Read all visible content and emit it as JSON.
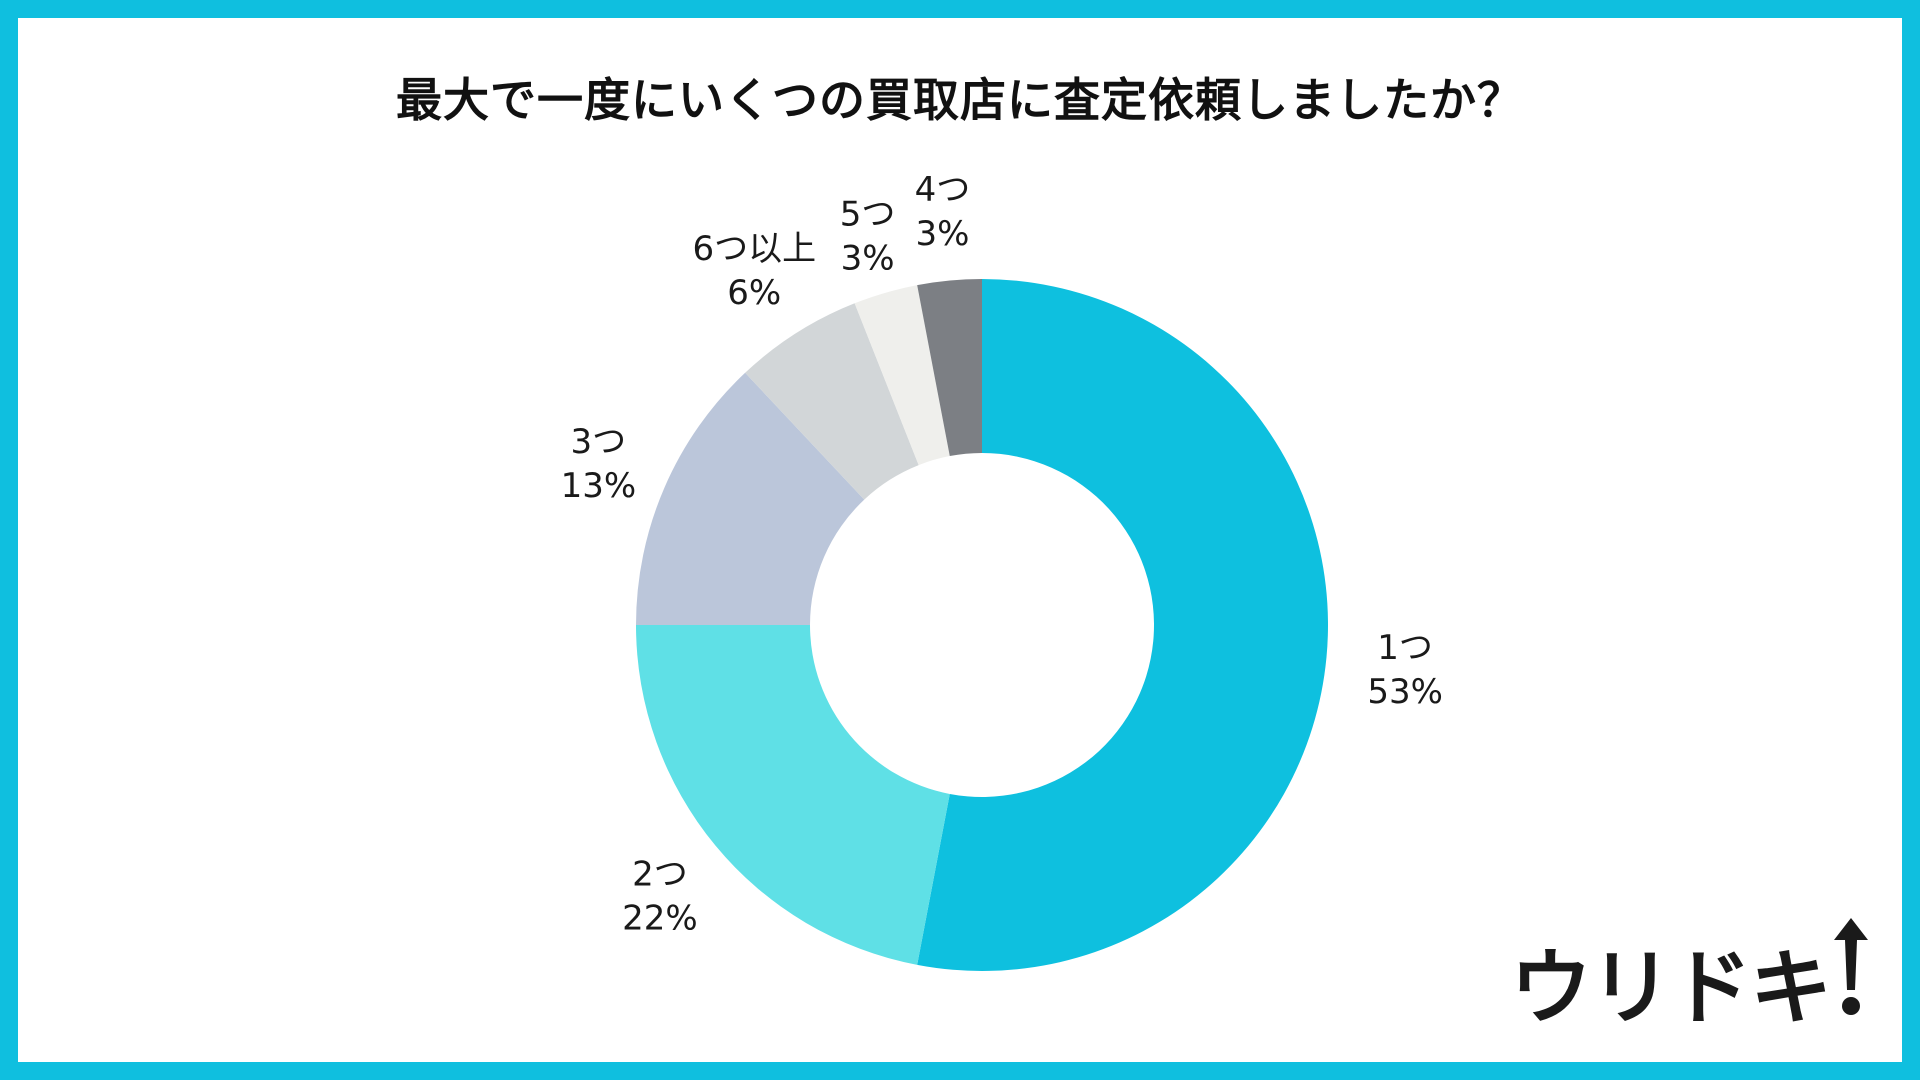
{
  "chart_data": {
    "type": "pie",
    "donut": true,
    "title": "最大で一度にいくつの買取店に査定依頼しましたか？",
    "slices": [
      {
        "label": "1つ",
        "value": 53,
        "value_label": "53%",
        "color": "#0ec0df"
      },
      {
        "label": "2つ",
        "value": 22,
        "value_label": "22%",
        "color": "#5fe0e6"
      },
      {
        "label": "3つ",
        "value": 13,
        "value_label": "13%",
        "color": "#bbc6da"
      },
      {
        "label": "6つ以上",
        "value": 6,
        "value_label": "6%",
        "color": "#d2d6d8"
      },
      {
        "label": "5つ",
        "value": 3,
        "value_label": "3%",
        "color": "#efefec"
      },
      {
        "label": "4つ",
        "value": 3,
        "value_label": "3%",
        "color": "#7c7f84"
      }
    ],
    "start": "top",
    "direction": "clockwise"
  },
  "brand": {
    "logo_text": "ウリドキ",
    "logo_icon": "up-arrow-icon",
    "frame_color": "#0fbfdf"
  }
}
